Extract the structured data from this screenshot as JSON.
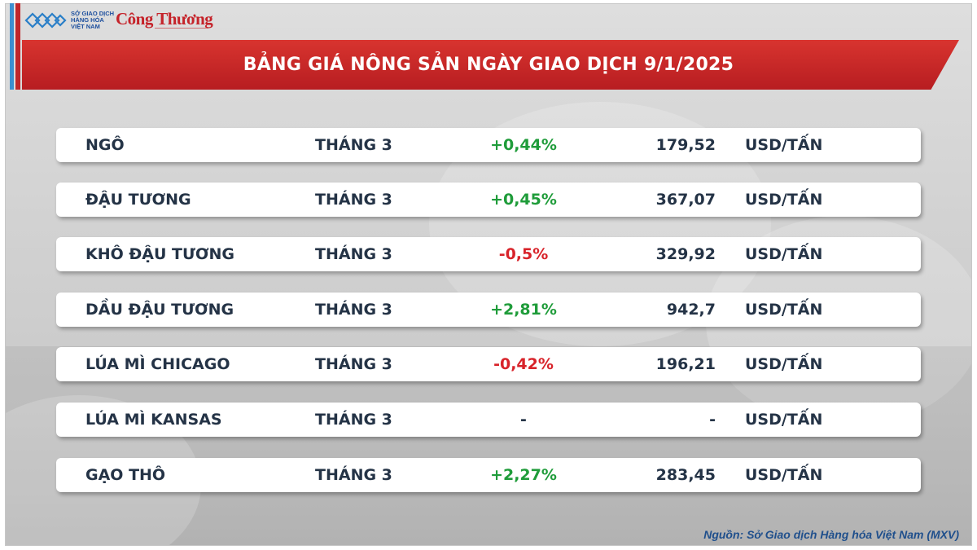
{
  "header": {
    "logo_mxv_text": "SỞ GIAO DỊCH\nHÀNG HÓA\nVIỆT NAM",
    "logo_ct_text": "Công Thương",
    "title": "BẢNG GIÁ NÔNG SẢN NGÀY GIAO DỊCH 9/1/2025"
  },
  "colors": {
    "banner_red": "#c0262a",
    "positive": "#1f9c3a",
    "negative": "#d8232a",
    "text": "#243346"
  },
  "rows": [
    {
      "name": "NGÔ",
      "month": "THÁNG 3",
      "change": "+0,44%",
      "direction": "pos",
      "price": "179,52",
      "unit": "USD/TẤN"
    },
    {
      "name": "ĐẬU TƯƠNG",
      "month": "THÁNG 3",
      "change": "+0,45%",
      "direction": "pos",
      "price": "367,07",
      "unit": "USD/TẤN"
    },
    {
      "name": "KHÔ ĐẬU TƯƠNG",
      "month": "THÁNG 3",
      "change": "-0,5%",
      "direction": "neg",
      "price": "329,92",
      "unit": "USD/TẤN"
    },
    {
      "name": "DẦU ĐẬU TƯƠNG",
      "month": "THÁNG 3",
      "change": "+2,81%",
      "direction": "pos",
      "price": "942,7",
      "unit": "USD/TẤN"
    },
    {
      "name": "LÚA MÌ CHICAGO",
      "month": "THÁNG 3",
      "change": "-0,42%",
      "direction": "neg",
      "price": "196,21",
      "unit": "USD/TẤN"
    },
    {
      "name": "LÚA MÌ KANSAS",
      "month": "THÁNG 3",
      "change": "-",
      "direction": "neu",
      "price": "-",
      "unit": "USD/TẤN"
    },
    {
      "name": "GẠO THÔ",
      "month": "THÁNG 3",
      "change": "+2,27%",
      "direction": "pos",
      "price": "283,45",
      "unit": "USD/TẤN"
    }
  ],
  "footer": {
    "source": "Nguồn: Sở Giao dịch Hàng hóa Việt Nam (MXV)"
  }
}
